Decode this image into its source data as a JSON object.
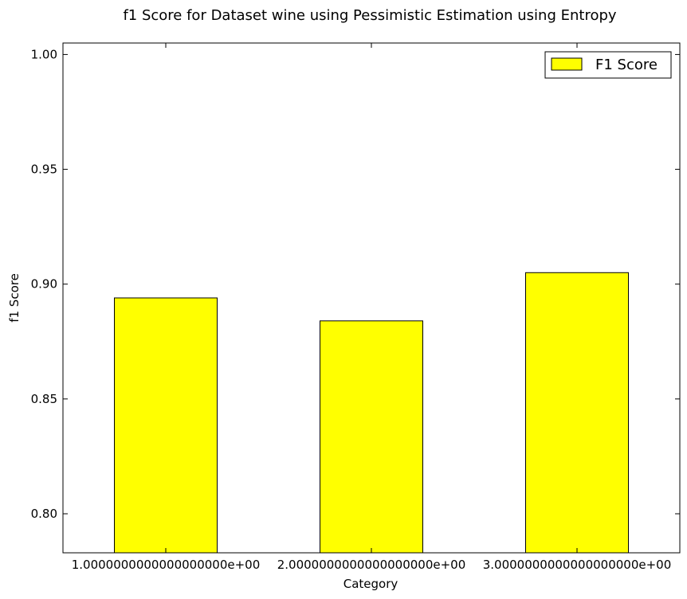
{
  "chart_data": {
    "type": "bar",
    "title": "f1 Score for Dataset wine using Pessimistic Estimation using Entropy",
    "xlabel": "Category",
    "ylabel": "f1 Score",
    "categories": [
      "1.0000000000000000000e+00",
      "2.0000000000000000000e+00",
      "3.0000000000000000000e+00"
    ],
    "series": [
      {
        "name": "F1 Score",
        "values": [
          0.894,
          0.884,
          0.905
        ],
        "color": "#ffff00"
      }
    ],
    "ylim": [
      0.783,
      1.005
    ],
    "yticks": [
      "0.80",
      "0.85",
      "0.90",
      "0.95",
      "1.00"
    ],
    "grid": false,
    "legend_position": "top-right"
  }
}
